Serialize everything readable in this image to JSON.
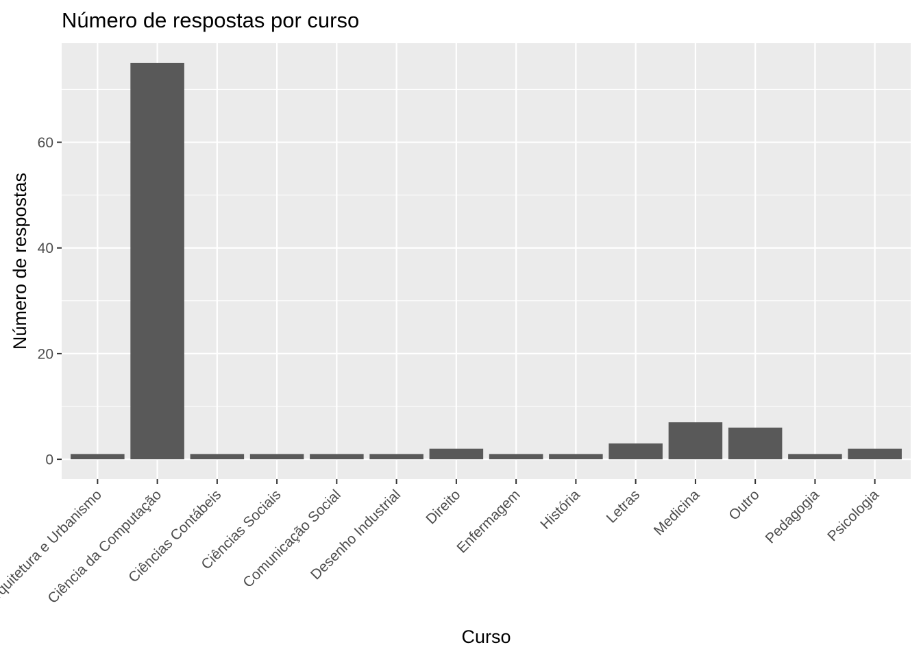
{
  "chart_data": {
    "type": "bar",
    "title": "Número de respostas por curso",
    "xlabel": "Curso",
    "ylabel": "Número de respostas",
    "categories": [
      "Arquitetura e Urbanismo",
      "Ciência da Computação",
      "Ciências Contábeis",
      "Ciências Sociais",
      "Comunicação Social",
      "Desenho Industrial",
      "Direito",
      "Enfermagem",
      "História",
      "Letras",
      "Medicina",
      "Outro",
      "Pedagogia",
      "Psicologia"
    ],
    "values": [
      1,
      75,
      1,
      1,
      1,
      1,
      2,
      1,
      1,
      3,
      7,
      6,
      1,
      2
    ],
    "ylim": [
      -3.75,
      78.75
    ],
    "yticks": [
      0,
      20,
      40,
      60
    ],
    "y_minor_ticks": [
      10,
      30,
      50,
      70
    ],
    "grid": true,
    "legend": "none",
    "colors": {
      "bar": "#595959",
      "panel": "#ebebeb",
      "grid": "#ffffff",
      "tick_text": "#4d4d4d",
      "tick_mark": "#333333"
    }
  }
}
